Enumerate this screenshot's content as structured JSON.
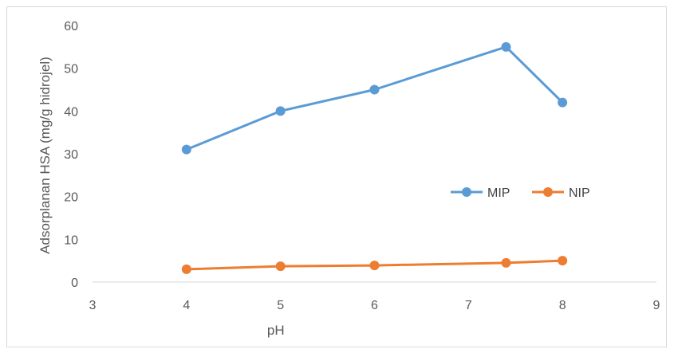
{
  "chart_data": {
    "type": "scatter",
    "title": "",
    "xlabel": "pH",
    "ylabel": "Adsorplanan HSA (mg/g hidrojel)",
    "xlim": [
      3,
      9
    ],
    "ylim": [
      0,
      60
    ],
    "xticks": [
      3,
      4,
      5,
      6,
      7,
      8,
      9
    ],
    "yticks": [
      0,
      10,
      20,
      30,
      40,
      50,
      60
    ],
    "grid": false,
    "legend_position": "right",
    "series": [
      {
        "name": "MIP",
        "color": "#5B9BD5",
        "x": [
          4,
          5,
          6,
          7.4,
          8
        ],
        "y": [
          31,
          40,
          45,
          55,
          42
        ]
      },
      {
        "name": "NIP",
        "color": "#ED7D31",
        "x": [
          4,
          5,
          6,
          7.4,
          8
        ],
        "y": [
          3,
          3.7,
          3.9,
          4.5,
          5
        ]
      }
    ]
  }
}
